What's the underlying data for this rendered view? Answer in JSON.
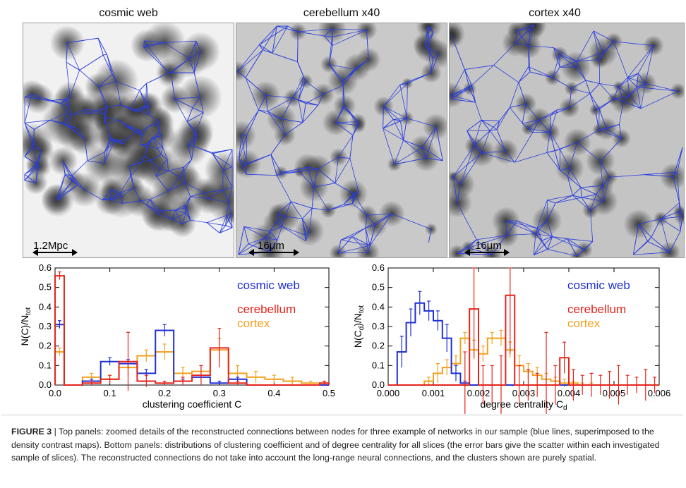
{
  "figure": {
    "panels": [
      {
        "title": "cosmic web",
        "scale_label": "1.2Mpc"
      },
      {
        "title": "cerebellum x40",
        "scale_label": "16μm"
      },
      {
        "title": "cortex x40",
        "scale_label": "16μm"
      }
    ],
    "caption_label": "FIGURE 3",
    "caption_text": "| Top panels: zoomed details of the reconstructed connections between nodes for three example of networks in our sample (blue lines, superimposed to the density contrast maps). Bottom panels: distributions of clustering coefficient and of degree centrality for all slices (the error bars give the scatter within each investigated sample of slices). The reconstructed connections do not take into account the long-range neural connections, and the clusters shown are purely spatial."
  },
  "colors": {
    "cosmic": "#1f2fd6",
    "cerebellum": "#e5231b",
    "cortex": "#f2a11f"
  },
  "chart_data": [
    {
      "type": "histogram",
      "xlabel": "clustering coefficient C",
      "ylabel": "N(C)/N",
      "ylabel_sub": "tot",
      "xlim": [
        0,
        0.5
      ],
      "ylim": [
        0,
        0.6
      ],
      "xticks": [
        "0.0",
        "0.1",
        "0.2",
        "0.3",
        "0.4",
        "0.5"
      ],
      "yticks": [
        "0.0",
        "0.1",
        "0.2",
        "0.3",
        "0.4",
        "0.5",
        "0.6"
      ],
      "legend": [
        "cosmic web",
        "cerebellum",
        "cortex"
      ],
      "bin_edges": [
        0,
        0.0167,
        0.05,
        0.0833,
        0.1167,
        0.15,
        0.1833,
        0.2167,
        0.25,
        0.2833,
        0.3167,
        0.35,
        0.3833,
        0.4167,
        0.45,
        0.4833,
        0.5
      ],
      "series": [
        {
          "name": "cosmic web",
          "values": [
            0.31,
            0.0,
            0.02,
            0.12,
            0.11,
            0.06,
            0.28,
            0.02,
            0.04,
            0.01,
            0.03,
            0.0,
            0.0,
            0.0,
            0.0,
            0.0
          ],
          "errors": [
            0.02,
            0,
            0.01,
            0.02,
            0.02,
            0.02,
            0.03,
            0.01,
            0.01,
            0.01,
            0.01,
            0,
            0,
            0,
            0,
            0
          ]
        },
        {
          "name": "cerebellum",
          "values": [
            0.56,
            0.0,
            0.01,
            0.03,
            0.12,
            0.02,
            0.01,
            0.02,
            0.05,
            0.19,
            0.01,
            0.0,
            0.0,
            0.0,
            0.0,
            0.01
          ],
          "errors": [
            0.02,
            0,
            0.01,
            0.02,
            0.15,
            0.03,
            0.01,
            0.02,
            0.05,
            0.1,
            0.01,
            0,
            0,
            0,
            0,
            0.01
          ]
        },
        {
          "name": "cortex",
          "values": [
            0.17,
            0.0,
            0.04,
            0.03,
            0.09,
            0.15,
            0.17,
            0.06,
            0.07,
            0.18,
            0.06,
            0.04,
            0.03,
            0.02,
            0.01,
            0.01
          ],
          "errors": [
            0.02,
            0,
            0.02,
            0.02,
            0.04,
            0.03,
            0.04,
            0.03,
            0.03,
            0.06,
            0.04,
            0.03,
            0.02,
            0.02,
            0.01,
            0.01
          ]
        }
      ]
    },
    {
      "type": "histogram",
      "xlabel": "degree centrality C",
      "xlabel_sub": "d",
      "ylabel": "N(C",
      "ylabel_sub": "d",
      "ylabel_rest": ")/N",
      "ylabel_sub2": "tot",
      "xlim": [
        0,
        0.006
      ],
      "ylim": [
        0,
        0.6
      ],
      "xticks": [
        "0.000",
        "0.001",
        "0.002",
        "0.003",
        "0.004",
        "0.005",
        "0.006"
      ],
      "yticks": [
        "0.0",
        "0.1",
        "0.2",
        "0.3",
        "0.4",
        "0.5",
        "0.6"
      ],
      "legend": [
        "cosmic web",
        "cerebellum",
        "cortex"
      ],
      "bin_edges": [
        0,
        0.0002,
        0.0004,
        0.0006,
        0.0008,
        0.001,
        0.0012,
        0.0014,
        0.0016,
        0.0018,
        0.002,
        0.0022,
        0.0024,
        0.0026,
        0.0028,
        0.003,
        0.0032,
        0.0034,
        0.0036,
        0.0038,
        0.004,
        0.0042,
        0.0044,
        0.0046,
        0.0048,
        0.005,
        0.0052,
        0.0054,
        0.0056,
        0.0058,
        0.006
      ],
      "series": [
        {
          "name": "cosmic web",
          "values": [
            0.0,
            0.17,
            0.32,
            0.42,
            0.38,
            0.33,
            0.24,
            0.06,
            0.01,
            0,
            0,
            0,
            0,
            0,
            0,
            0,
            0,
            0,
            0,
            0,
            0,
            0,
            0,
            0,
            0,
            0,
            0,
            0,
            0,
            0
          ],
          "errors": [
            0,
            0.08,
            0.07,
            0.06,
            0.05,
            0.05,
            0.07,
            0.04,
            0.01,
            0,
            0,
            0,
            0,
            0,
            0,
            0,
            0,
            0,
            0,
            0,
            0,
            0,
            0,
            0,
            0,
            0,
            0,
            0,
            0,
            0
          ]
        },
        {
          "name": "cerebellum",
          "values": [
            0,
            0,
            0,
            0,
            0,
            0,
            0,
            0,
            0.0,
            0.39,
            0.0,
            0.0,
            0.0,
            0.46,
            0.0,
            0.0,
            0.0,
            0.0,
            0.0,
            0.14,
            0.0,
            0.0,
            0.0,
            0.0,
            0.0,
            0.0,
            0.0,
            0.0,
            0.0,
            0.0
          ],
          "errors": [
            0,
            0,
            0,
            0,
            0,
            0,
            0,
            0,
            0.17,
            0.25,
            0.1,
            0.1,
            0.15,
            0.3,
            0.1,
            0.08,
            0.06,
            0.27,
            0.1,
            0.08,
            0.08,
            0.05,
            0.06,
            0.05,
            0.07,
            0.1,
            0.05,
            0.04,
            0.08,
            0.04
          ]
        },
        {
          "name": "cortex",
          "values": [
            0,
            0,
            0,
            0,
            0.02,
            0.06,
            0.09,
            0.11,
            0.24,
            0.18,
            0.16,
            0.24,
            0.24,
            0.18,
            0.1,
            0.07,
            0.05,
            0.03,
            0.02,
            0.01,
            0.01,
            0.0,
            0.0,
            0,
            0,
            0,
            0,
            0,
            0,
            0
          ],
          "errors": [
            0,
            0,
            0,
            0,
            0.02,
            0.05,
            0.04,
            0.04,
            0.03,
            0.05,
            0.04,
            0.03,
            0.04,
            0.04,
            0.05,
            0.04,
            0.04,
            0.03,
            0.02,
            0.02,
            0.01,
            0.01,
            0.01,
            0,
            0,
            0,
            0,
            0,
            0,
            0
          ]
        }
      ]
    }
  ]
}
